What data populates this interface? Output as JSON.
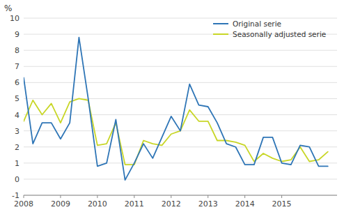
{
  "chart_data": {
    "type": "line",
    "y_label": "%",
    "x": [
      2008,
      2008.25,
      2008.5,
      2008.75,
      2009,
      2009.25,
      2009.5,
      2009.75,
      2010,
      2010.25,
      2010.5,
      2010.75,
      2011,
      2011.25,
      2011.5,
      2011.75,
      2012,
      2012.25,
      2012.5,
      2012.75,
      2013,
      2013.25,
      2013.5,
      2013.75,
      2014,
      2014.25,
      2014.5,
      2014.75,
      2015,
      2015.25,
      2015.5,
      2015.75,
      2016,
      2016.25
    ],
    "series": [
      {
        "name": "Seasonally adjusted serie",
        "color": "#c8d627",
        "values": [
          3.6,
          4.9,
          4.0,
          4.7,
          3.5,
          4.8,
          5.0,
          4.9,
          2.1,
          2.2,
          3.5,
          0.9,
          0.9,
          2.4,
          2.2,
          2.1,
          2.8,
          3.0,
          4.3,
          3.6,
          3.6,
          2.4,
          2.4,
          2.3,
          2.1,
          1.1,
          1.6,
          1.3,
          1.1,
          1.2,
          2.0,
          1.1,
          1.2,
          1.7
        ]
      },
      {
        "name": "Original serie",
        "color": "#2e75b6",
        "values": [
          6.3,
          2.2,
          3.5,
          3.5,
          2.5,
          3.5,
          8.8,
          5.0,
          0.8,
          1.0,
          3.7,
          -0.05,
          1.0,
          2.2,
          1.3,
          2.6,
          3.9,
          3.0,
          5.9,
          4.6,
          4.5,
          3.5,
          2.2,
          2.0,
          0.9,
          0.9,
          2.6,
          2.6,
          1.0,
          0.9,
          2.1,
          2.0,
          0.8,
          0.8
        ]
      }
    ],
    "xlim": [
      2008,
      2016.5
    ],
    "xticks": [
      2008,
      2009,
      2010,
      2011,
      2012,
      2013,
      2014,
      2015
    ],
    "ylim": [
      -1,
      10
    ],
    "yticks": [
      -1,
      0,
      1,
      2,
      3,
      4,
      5,
      6,
      7,
      8,
      9,
      10
    ],
    "grid": true,
    "legend": "upper right"
  }
}
